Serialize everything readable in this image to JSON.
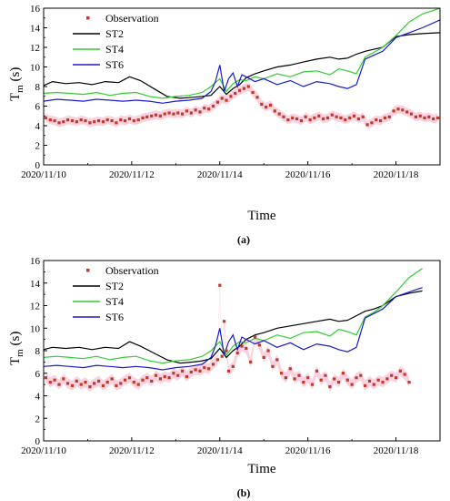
{
  "chart_data": [
    {
      "panel": "(a)",
      "type": "line",
      "xlabel": "Time",
      "ylabel_main": "T",
      "ylabel_sub": "m",
      "ylabel_unit": " (s)",
      "ylim": [
        0,
        16
      ],
      "yticks": [
        0,
        2,
        4,
        6,
        8,
        10,
        12,
        14,
        16
      ],
      "xlim": [
        0,
        9.0
      ],
      "xticks": [
        0,
        2,
        4,
        6,
        8
      ],
      "xticklabels": [
        "2020/11/10",
        "2020/11/12",
        "2020/11/14",
        "2020/11/16",
        "2020/11/18"
      ],
      "legend": [
        "Observation",
        "ST2",
        "ST4",
        "ST6"
      ],
      "colors": {
        "observation": "#c0392b",
        "ST2": "#000000",
        "ST4": "#33cc33",
        "ST6": "#1a1acc",
        "band": "#f7c6d6"
      },
      "series": [
        {
          "name": "ST2",
          "x": [
            0,
            0.2,
            0.5,
            0.8,
            1.1,
            1.4,
            1.7,
            1.95,
            2.2,
            2.5,
            2.8,
            3.1,
            3.4,
            3.6,
            3.8,
            4.0,
            4.15,
            4.3,
            4.45,
            4.6,
            4.8,
            5.0,
            5.3,
            5.6,
            5.9,
            6.2,
            6.5,
            6.7,
            6.9,
            7.1,
            7.3,
            7.5,
            7.7,
            8.0,
            8.3,
            8.6,
            9.0
          ],
          "y": [
            8.1,
            8.5,
            8.3,
            8.4,
            8.2,
            8.5,
            8.4,
            9.0,
            8.6,
            7.8,
            7.0,
            6.8,
            6.9,
            7.0,
            7.1,
            8.0,
            7.2,
            7.8,
            8.2,
            8.9,
            9.3,
            9.6,
            10.0,
            10.2,
            10.5,
            10.8,
            11.0,
            10.8,
            10.9,
            11.3,
            11.6,
            11.8,
            12.0,
            13.1,
            13.3,
            13.4,
            13.5
          ]
        },
        {
          "name": "ST4",
          "x": [
            0,
            0.3,
            0.6,
            0.9,
            1.2,
            1.5,
            1.8,
            2.1,
            2.4,
            2.7,
            3.0,
            3.3,
            3.6,
            3.8,
            4.0,
            4.15,
            4.3,
            4.45,
            4.6,
            4.8,
            5.0,
            5.3,
            5.6,
            5.9,
            6.2,
            6.5,
            6.7,
            6.9,
            7.1,
            7.3,
            7.5,
            7.7,
            8.0,
            8.3,
            8.6,
            9.0
          ],
          "y": [
            7.3,
            7.4,
            7.3,
            7.2,
            7.4,
            7.1,
            7.3,
            7.4,
            7.0,
            6.8,
            7.0,
            7.1,
            7.4,
            8.0,
            8.8,
            7.5,
            8.3,
            8.7,
            8.6,
            9.0,
            8.8,
            9.3,
            9.0,
            9.5,
            9.6,
            9.2,
            9.8,
            9.6,
            9.3,
            11.0,
            11.5,
            12.0,
            13.2,
            14.6,
            15.4,
            16.0
          ]
        },
        {
          "name": "ST6",
          "x": [
            0,
            0.3,
            0.6,
            0.9,
            1.2,
            1.5,
            1.8,
            2.1,
            2.4,
            2.7,
            3.0,
            3.3,
            3.6,
            3.8,
            3.9,
            4.0,
            4.1,
            4.2,
            4.3,
            4.4,
            4.5,
            4.6,
            4.8,
            5.0,
            5.3,
            5.6,
            5.9,
            6.2,
            6.5,
            6.7,
            6.9,
            7.1,
            7.3,
            7.5,
            7.7,
            8.0,
            8.3,
            8.6,
            9.0
          ],
          "y": [
            6.5,
            6.7,
            6.6,
            6.5,
            6.7,
            6.6,
            6.5,
            6.6,
            6.5,
            6.3,
            6.5,
            6.6,
            6.8,
            7.5,
            8.5,
            10.2,
            7.5,
            8.8,
            9.4,
            8.0,
            9.2,
            9.0,
            8.5,
            8.8,
            8.2,
            8.6,
            8.0,
            8.5,
            8.3,
            8.0,
            7.8,
            8.2,
            10.8,
            11.2,
            11.6,
            13.0,
            13.5,
            14.0,
            14.8
          ]
        },
        {
          "name": "Observation",
          "x": [
            0.05,
            0.15,
            0.25,
            0.35,
            0.45,
            0.55,
            0.65,
            0.75,
            0.85,
            0.95,
            1.05,
            1.15,
            1.25,
            1.35,
            1.45,
            1.55,
            1.65,
            1.75,
            1.85,
            1.95,
            2.05,
            2.15,
            2.25,
            2.35,
            2.45,
            2.55,
            2.65,
            2.75,
            2.85,
            2.95,
            3.05,
            3.15,
            3.25,
            3.35,
            3.45,
            3.55,
            3.65,
            3.75,
            3.85,
            3.95,
            4.05,
            4.15,
            4.25,
            4.35,
            4.45,
            4.55,
            4.65,
            4.75,
            4.85,
            4.95,
            5.05,
            5.15,
            5.25,
            5.35,
            5.45,
            5.55,
            5.65,
            5.75,
            5.85,
            5.95,
            6.05,
            6.15,
            6.25,
            6.35,
            6.45,
            6.55,
            6.65,
            6.75,
            6.85,
            6.95,
            7.05,
            7.15,
            7.25,
            7.35,
            7.45,
            7.55,
            7.65,
            7.75,
            7.85,
            7.95,
            8.05,
            8.15,
            8.25,
            8.35,
            8.45,
            8.55,
            8.65,
            8.75,
            8.85,
            8.95
          ],
          "y": [
            4.8,
            4.6,
            4.5,
            4.3,
            4.4,
            4.6,
            4.5,
            4.4,
            4.6,
            4.5,
            4.3,
            4.4,
            4.5,
            4.4,
            4.6,
            4.5,
            4.3,
            4.6,
            4.5,
            4.7,
            4.5,
            4.6,
            4.8,
            4.9,
            5.0,
            5.1,
            5.0,
            5.2,
            5.3,
            5.2,
            5.3,
            5.2,
            5.5,
            5.3,
            5.6,
            5.4,
            5.8,
            5.7,
            6.0,
            6.4,
            6.8,
            6.6,
            7.0,
            7.3,
            7.6,
            7.8,
            8.0,
            7.4,
            6.9,
            6.2,
            5.9,
            6.1,
            5.5,
            5.2,
            4.9,
            4.6,
            4.8,
            4.7,
            4.5,
            4.9,
            4.6,
            4.8,
            5.0,
            4.7,
            4.8,
            5.1,
            4.9,
            4.8,
            4.6,
            4.8,
            5.0,
            4.7,
            4.9,
            4.1,
            4.3,
            4.6,
            4.5,
            4.8,
            4.9,
            5.5,
            5.7,
            5.6,
            5.4,
            5.2,
            4.9,
            5.0,
            4.8,
            4.9,
            4.7,
            4.8
          ]
        }
      ]
    },
    {
      "panel": "(b)",
      "type": "line",
      "xlabel": "Time",
      "ylabel_main": "T",
      "ylabel_sub": "m",
      "ylabel_unit": " (s)",
      "ylim": [
        0,
        16
      ],
      "yticks": [
        0,
        2,
        4,
        6,
        8,
        10,
        12,
        14,
        16
      ],
      "xlim": [
        0,
        9.0
      ],
      "xticks": [
        0,
        2,
        4,
        6,
        8
      ],
      "xticklabels": [
        "2020/11/10",
        "2020/11/12",
        "2020/11/14",
        "2020/11/16",
        "2020/11/18"
      ],
      "legend": [
        "Observation",
        "ST2",
        "ST4",
        "ST6"
      ],
      "colors": {
        "observation": "#c0392b",
        "ST2": "#000000",
        "ST4": "#33cc33",
        "ST6": "#1a1acc",
        "band": "#f7c6d6"
      },
      "series": [
        {
          "name": "ST2",
          "x": [
            0,
            0.2,
            0.5,
            0.8,
            1.1,
            1.4,
            1.7,
            1.95,
            2.2,
            2.5,
            2.8,
            3.1,
            3.4,
            3.6,
            3.8,
            4.0,
            4.15,
            4.3,
            4.45,
            4.6,
            4.8,
            5.0,
            5.3,
            5.6,
            5.9,
            6.2,
            6.5,
            6.7,
            6.9,
            7.1,
            7.3,
            7.5,
            7.7,
            8.0,
            8.3,
            8.6
          ],
          "y": [
            8.1,
            8.3,
            8.2,
            8.3,
            8.1,
            8.3,
            8.2,
            8.8,
            8.4,
            7.8,
            7.2,
            6.9,
            7.0,
            7.1,
            7.3,
            8.2,
            7.4,
            8.0,
            8.4,
            9.0,
            9.4,
            9.6,
            10.0,
            10.2,
            10.4,
            10.6,
            10.8,
            10.6,
            10.7,
            11.1,
            11.5,
            11.7,
            12.0,
            12.8,
            13.1,
            13.3
          ]
        },
        {
          "name": "ST4",
          "x": [
            0,
            0.3,
            0.6,
            0.9,
            1.2,
            1.5,
            1.8,
            2.1,
            2.4,
            2.7,
            3.0,
            3.3,
            3.6,
            3.8,
            4.0,
            4.15,
            4.3,
            4.45,
            4.6,
            4.8,
            5.0,
            5.3,
            5.6,
            5.9,
            6.2,
            6.5,
            6.7,
            6.9,
            7.1,
            7.3,
            7.5,
            7.7,
            8.0,
            8.3,
            8.6
          ],
          "y": [
            7.4,
            7.5,
            7.4,
            7.3,
            7.5,
            7.2,
            7.4,
            7.5,
            7.1,
            6.9,
            7.1,
            7.2,
            7.5,
            8.0,
            8.8,
            7.6,
            8.4,
            8.8,
            8.7,
            9.1,
            8.9,
            9.4,
            9.1,
            9.6,
            9.7,
            9.3,
            9.9,
            9.7,
            9.4,
            11.0,
            11.4,
            12.0,
            13.2,
            14.5,
            15.3
          ]
        },
        {
          "name": "ST6",
          "x": [
            0,
            0.3,
            0.6,
            0.9,
            1.2,
            1.5,
            1.8,
            2.1,
            2.4,
            2.7,
            3.0,
            3.3,
            3.6,
            3.8,
            3.9,
            4.0,
            4.1,
            4.2,
            4.3,
            4.4,
            4.5,
            4.6,
            4.8,
            5.0,
            5.3,
            5.6,
            5.9,
            6.2,
            6.5,
            6.7,
            6.9,
            7.1,
            7.3,
            7.5,
            7.7,
            8.0,
            8.3,
            8.6
          ],
          "y": [
            6.6,
            6.7,
            6.6,
            6.5,
            6.7,
            6.6,
            6.5,
            6.6,
            6.5,
            6.3,
            6.5,
            6.6,
            6.8,
            7.4,
            8.4,
            10.0,
            7.6,
            8.8,
            9.4,
            8.1,
            9.2,
            9.0,
            8.6,
            8.9,
            8.3,
            8.7,
            8.1,
            8.6,
            8.4,
            8.1,
            7.9,
            8.3,
            10.9,
            11.3,
            11.7,
            12.8,
            13.2,
            13.6
          ]
        },
        {
          "name": "Observation",
          "x": [
            0.05,
            0.15,
            0.25,
            0.35,
            0.45,
            0.55,
            0.65,
            0.75,
            0.85,
            0.95,
            1.05,
            1.15,
            1.25,
            1.35,
            1.45,
            1.55,
            1.65,
            1.75,
            1.85,
            1.95,
            2.05,
            2.15,
            2.25,
            2.35,
            2.45,
            2.55,
            2.65,
            2.75,
            2.85,
            2.95,
            3.05,
            3.15,
            3.25,
            3.35,
            3.45,
            3.55,
            3.65,
            3.75,
            3.85,
            3.95,
            4.0,
            4.05,
            4.1,
            4.15,
            4.2,
            4.3,
            4.4,
            4.5,
            4.6,
            4.7,
            4.8,
            4.9,
            5.0,
            5.1,
            5.2,
            5.3,
            5.4,
            5.5,
            5.6,
            5.7,
            5.8,
            5.9,
            6.0,
            6.1,
            6.2,
            6.3,
            6.4,
            6.5,
            6.6,
            6.7,
            6.8,
            6.9,
            7.0,
            7.1,
            7.2,
            7.3,
            7.4,
            7.5,
            7.6,
            7.7,
            7.8,
            7.9,
            8.0,
            8.1,
            8.2,
            8.3
          ],
          "y": [
            5.6,
            5.2,
            5.4,
            5.0,
            5.5,
            5.1,
            4.9,
            5.3,
            5.0,
            5.2,
            4.8,
            5.1,
            5.3,
            4.9,
            5.2,
            5.5,
            4.9,
            5.1,
            5.4,
            5.6,
            5.2,
            5.0,
            5.4,
            5.6,
            5.3,
            5.8,
            5.5,
            5.7,
            5.6,
            6.0,
            5.8,
            6.2,
            5.7,
            6.1,
            6.3,
            6.2,
            6.5,
            6.4,
            6.8,
            7.2,
            13.8,
            7.5,
            10.6,
            8.0,
            6.2,
            6.6,
            7.8,
            8.4,
            8.2,
            7.0,
            9.2,
            8.5,
            7.4,
            8.0,
            6.6,
            7.2,
            6.0,
            5.6,
            6.4,
            5.5,
            5.8,
            5.2,
            5.6,
            5.0,
            6.2,
            5.4,
            5.8,
            4.8,
            5.5,
            5.2,
            6.0,
            5.4,
            5.0,
            5.6,
            5.8,
            4.9,
            5.3,
            5.0,
            5.4,
            5.2,
            5.5,
            5.8,
            5.6,
            6.2,
            5.9,
            5.2
          ]
        }
      ]
    }
  ]
}
